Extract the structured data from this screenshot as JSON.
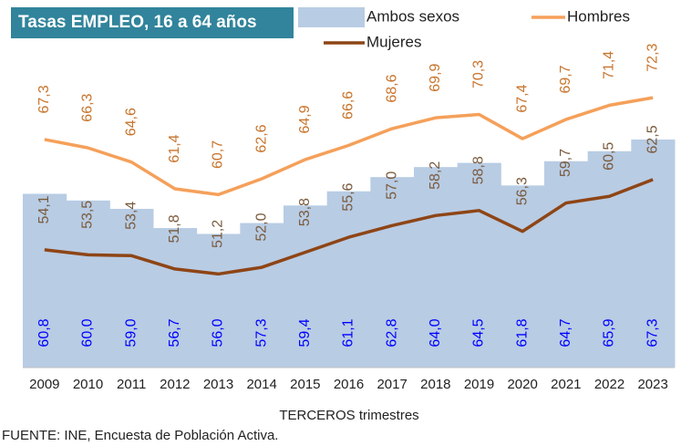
{
  "chart_data": {
    "type": "combo",
    "title": "Tasas EMPLEO, 16 a 64 años",
    "x_label": "TERCEROS trimestres",
    "source": "FUENTE: INE, Encuesta de Población Activa.",
    "categories": [
      "2009",
      "2010",
      "2011",
      "2012",
      "2013",
      "2014",
      "2015",
      "2016",
      "2017",
      "2018",
      "2019",
      "2020",
      "2021",
      "2022",
      "2023"
    ],
    "ylim": [
      40,
      84
    ],
    "series": [
      {
        "name": "Ambos sexos",
        "type": "area",
        "color": "#b8cce4",
        "label_color": "#0000ff",
        "values": [
          60.8,
          60.0,
          59.0,
          56.7,
          56.0,
          57.3,
          59.4,
          61.1,
          62.8,
          64.0,
          64.5,
          61.8,
          64.7,
          65.9,
          67.3
        ],
        "value_labels": [
          "60,8",
          "60,0",
          "59,0",
          "56,7",
          "56,0",
          "57,3",
          "59,4",
          "61,1",
          "62,8",
          "64,0",
          "64,5",
          "61,8",
          "64,7",
          "65,9",
          "67,3"
        ]
      },
      {
        "name": "Hombres",
        "type": "line",
        "color": "#f5a05a",
        "label_color": "#c8742c",
        "values": [
          67.3,
          66.3,
          64.6,
          61.4,
          60.7,
          62.6,
          64.9,
          66.6,
          68.6,
          69.9,
          70.3,
          67.4,
          69.7,
          71.4,
          72.3
        ],
        "value_labels": [
          "67,3",
          "66,3",
          "64,6",
          "61,4",
          "60,7",
          "62,6",
          "64,9",
          "66,6",
          "68,6",
          "69,9",
          "70,3",
          "67,4",
          "69,7",
          "71,4",
          "72,3"
        ]
      },
      {
        "name": "Mujeres",
        "type": "line",
        "color": "#8e4516",
        "label_color": "#7a5a3c",
        "values": [
          54.1,
          53.5,
          53.4,
          51.8,
          51.2,
          52.0,
          53.8,
          55.6,
          57.0,
          58.2,
          58.8,
          56.3,
          59.7,
          60.5,
          62.5
        ],
        "value_labels": [
          "54,1",
          "53,5",
          "53,4",
          "51,8",
          "51,2",
          "52,0",
          "53,8",
          "55,6",
          "57,0",
          "58,2",
          "58,8",
          "56,3",
          "59,7",
          "60,5",
          "62,5"
        ]
      }
    ]
  }
}
